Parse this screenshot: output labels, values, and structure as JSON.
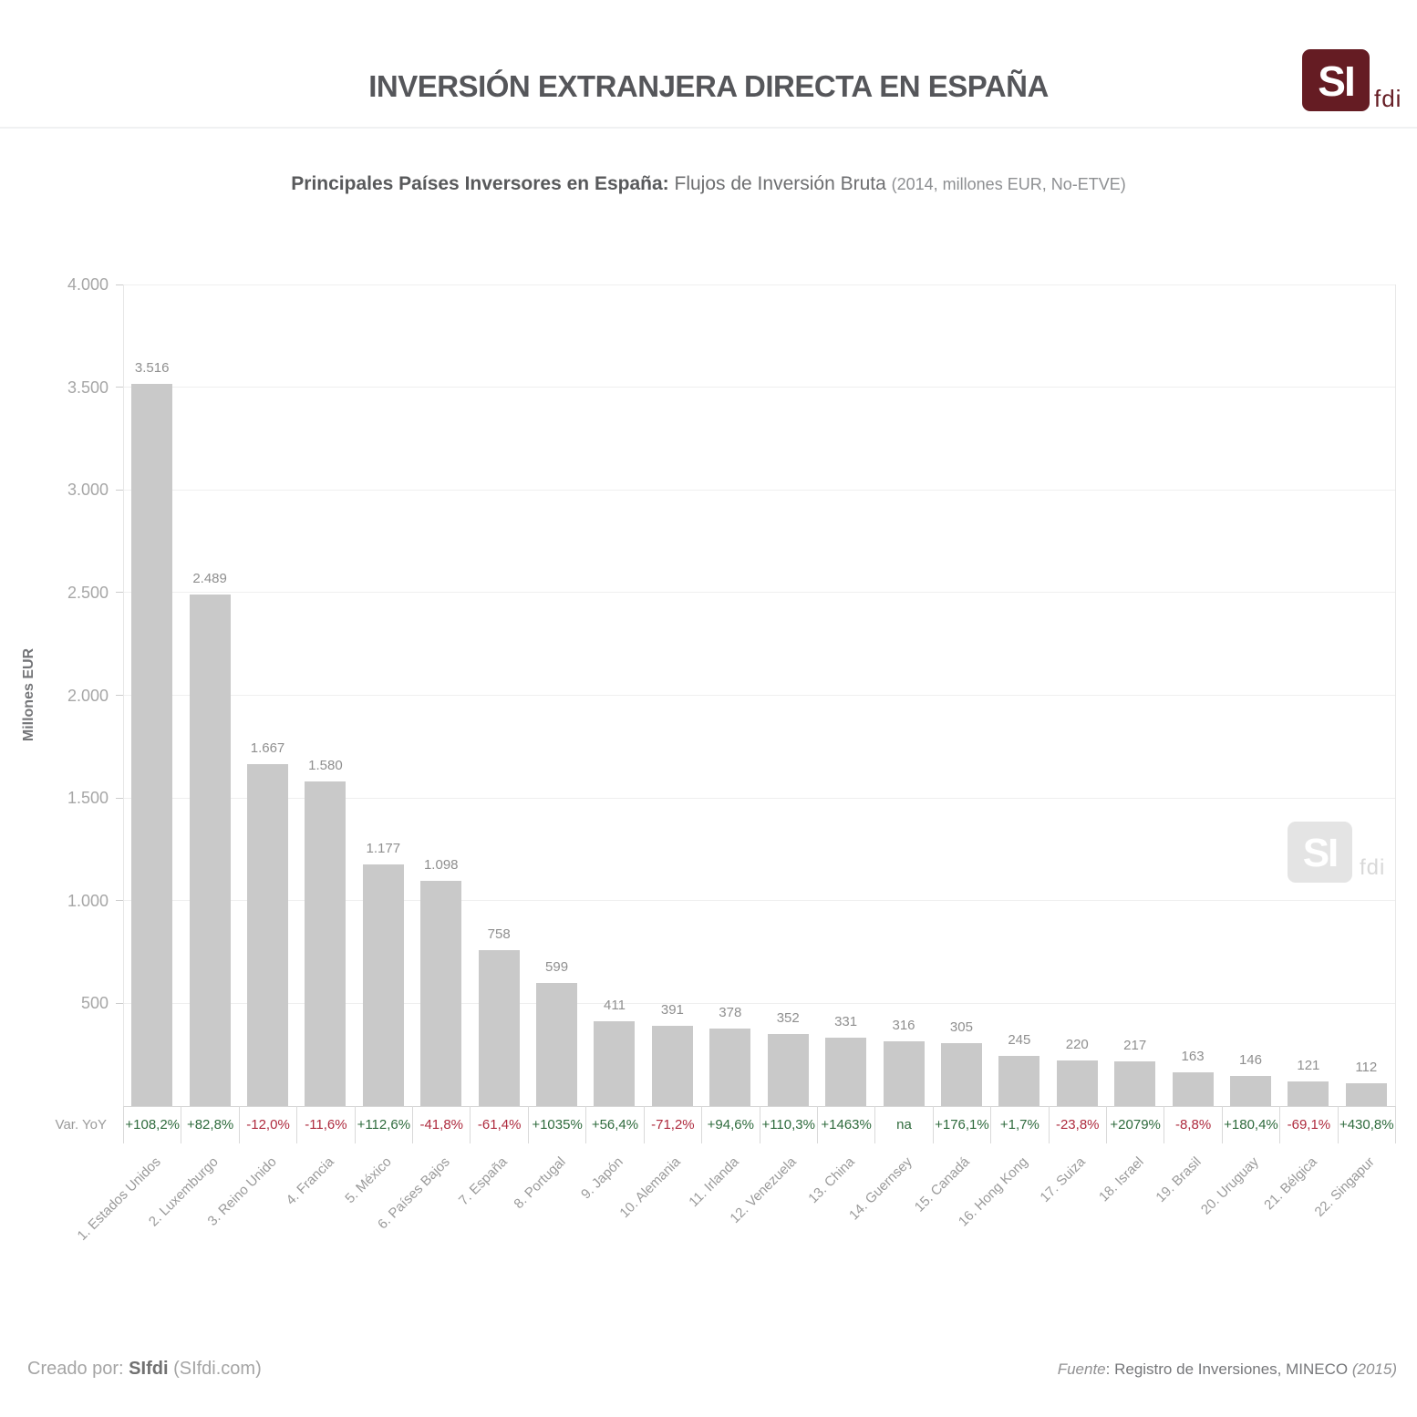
{
  "header": {
    "title": "INVERSIÓN EXTRANJERA DIRECTA EN ESPAÑA",
    "logo": {
      "si": "SI",
      "fdi": "fdi"
    }
  },
  "subtitle": {
    "bold": "Principales Países Inversores en España:",
    "main": " Flujos de Inversión Bruta ",
    "note": "(2014, millones EUR, No-ETVE)"
  },
  "chart_data": {
    "type": "bar",
    "title": "Principales Países Inversores en España: Flujos de Inversión Bruta (2014, millones EUR, No-ETVE)",
    "xlabel": "",
    "ylabel": "Millones EUR",
    "ylim": [
      0,
      4000
    ],
    "grid": true,
    "legend": false,
    "yticks": [
      4000,
      3500,
      3000,
      2500,
      2000,
      1500,
      1000,
      500
    ],
    "ytick_labels": [
      "4.000",
      "3.500",
      "3.000",
      "2.500",
      "2.000",
      "1.500",
      "1.000",
      "500"
    ],
    "categories": [
      "1. Estados Unidos",
      "2. Luxemburgo",
      "3. Reino Unido",
      "4. Francia",
      "5. México",
      "6. Países Bajos",
      "7. España",
      "8. Portugal",
      "9. Japón",
      "10. Alemania",
      "11. Irlanda",
      "12. Venezuela",
      "13. China",
      "14. Guernsey",
      "15. Canadá",
      "16. Hong Kong",
      "17. Suiza",
      "18. Israel",
      "19. Brasil",
      "20. Uruguay",
      "21. Bélgica",
      "22. Singapur"
    ],
    "values": [
      3516,
      2489,
      1667,
      1580,
      1177,
      1098,
      758,
      599,
      411,
      391,
      378,
      352,
      331,
      316,
      305,
      245,
      220,
      217,
      163,
      146,
      121,
      112
    ],
    "value_labels": [
      "3.516",
      "2.489",
      "1.667",
      "1.580",
      "1.177",
      "1.098",
      "758",
      "599",
      "411",
      "391",
      "378",
      "352",
      "331",
      "316",
      "305",
      "245",
      "220",
      "217",
      "163",
      "146",
      "121",
      "112"
    ],
    "yoy_label": "Var. YoY",
    "yoy_values": [
      "+108,2%",
      "+82,8%",
      "-12,0%",
      "-11,6%",
      "+112,6%",
      "-41,8%",
      "-61,4%",
      "+1035%",
      "+56,4%",
      "-71,2%",
      "+94,6%",
      "+110,3%",
      "+1463%",
      "na",
      "+176,1%",
      "+1,7%",
      "-23,8%",
      "+2079%",
      "-8,8%",
      "+180,4%",
      "-69,1%",
      "+430,8%"
    ]
  },
  "watermark": {
    "si": "SI",
    "fdi": "fdi"
  },
  "footer": {
    "left_prefix": "Creado por: ",
    "left_bold": "SIfdi",
    "left_suffix": " (SIfdi.com)",
    "right_source_word": "Fuente",
    "right_main": ": Registro de Inversiones, MINECO",
    "right_year": "  (2015)"
  },
  "colors": {
    "brand_maroon": "#651c23",
    "bar_fill": "#c9c9c9",
    "positive_green": "#2f6b3d",
    "negative_red": "#ae2b3e"
  }
}
